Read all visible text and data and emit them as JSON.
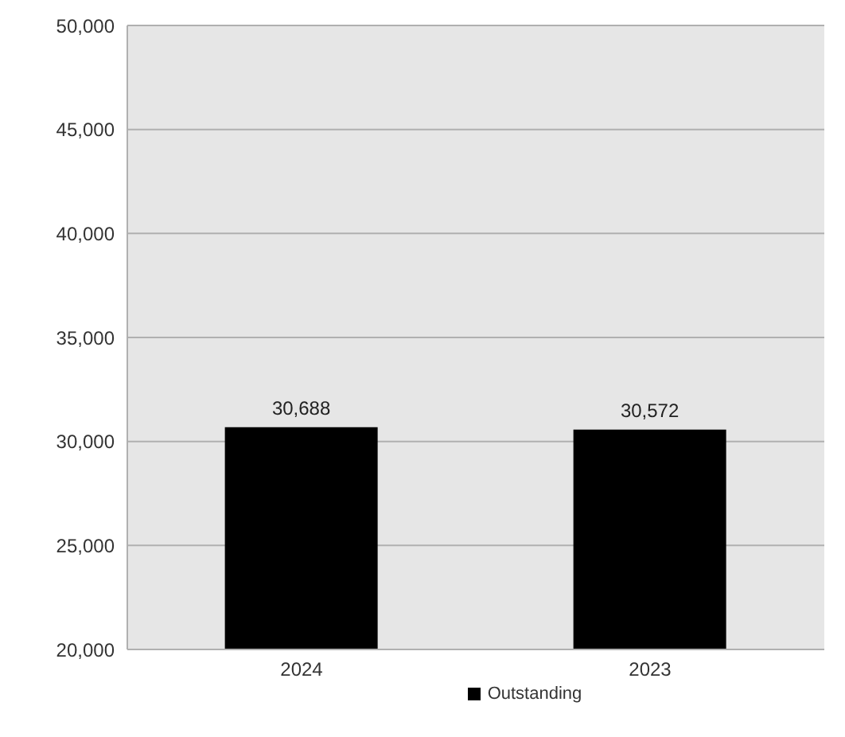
{
  "chart_data": {
    "type": "bar",
    "categories": [
      "2024",
      "2023"
    ],
    "series": [
      {
        "name": "Outstanding",
        "color": "#000000",
        "values": [
          30688,
          30572
        ],
        "value_labels": [
          "30,688",
          "30,572"
        ]
      }
    ],
    "ylim": [
      20000,
      50000
    ],
    "yticks": [
      {
        "value": 20000,
        "label": "20,000"
      },
      {
        "value": 25000,
        "label": "25,000"
      },
      {
        "value": 30000,
        "label": "30,000"
      },
      {
        "value": 35000,
        "label": "35,000"
      },
      {
        "value": 40000,
        "label": "40,000"
      },
      {
        "value": 45000,
        "label": "45,000"
      },
      {
        "value": 50000,
        "label": "50,000"
      }
    ],
    "grid": "y",
    "legend": "bottom"
  }
}
